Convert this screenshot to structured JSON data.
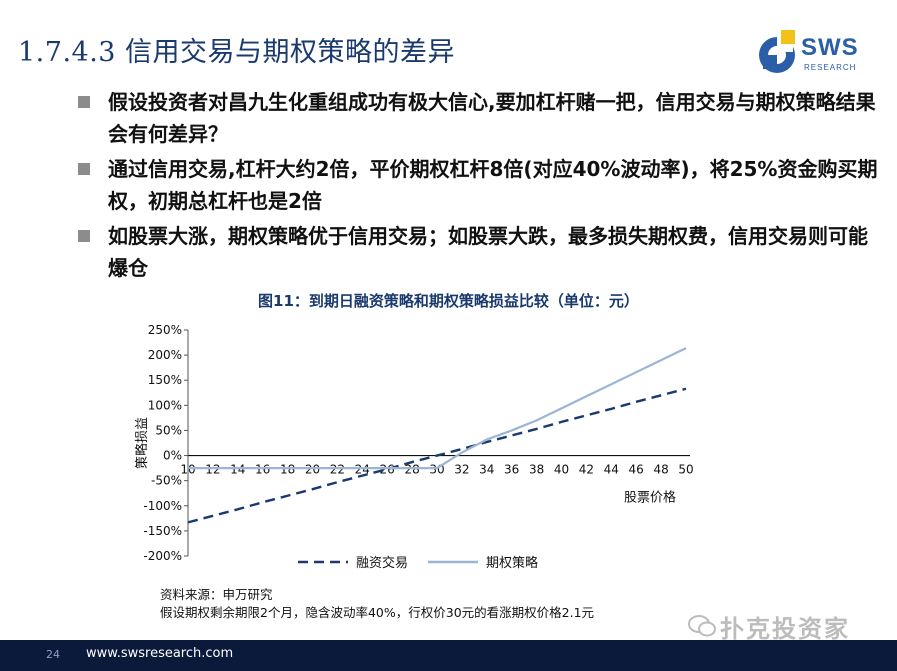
{
  "title": "1.7.4.3 信用交易与期权策略的差异",
  "logo": {
    "text": "SWS",
    "sub": "RESEARCH"
  },
  "bullets": [
    "假设投资者对昌九生化重组成功有极大信心,要加杠杆赌一把，信用交易与期权策略结果会有何差异？",
    "通过信用交易,杠杆大约2倍，平价期权杠杆8倍(对应40%波动率)，将25%资金购买期权，初期总杠杆也是2倍",
    "如股票大涨，期权策略优于信用交易；如股票大跌，最多损失期权费，信用交易则可能爆仓"
  ],
  "figure_title": "图11：到期日融资策略和期权策略损益比较（单位：元）",
  "chart_data": {
    "type": "line",
    "x": [
      10,
      12,
      14,
      16,
      18,
      20,
      22,
      24,
      26,
      28,
      30,
      32,
      34,
      36,
      38,
      40,
      42,
      44,
      46,
      48,
      50
    ],
    "xlabel": "股票价格",
    "ylabel": "策略损益",
    "ylim": [
      -200,
      250
    ],
    "yticks": [
      "250%",
      "200%",
      "150%",
      "100%",
      "50%",
      "0%",
      "-50%",
      "-100%",
      "-150%",
      "-200%"
    ],
    "ytick_values": [
      250,
      200,
      150,
      100,
      50,
      0,
      -50,
      -100,
      -150,
      -200
    ],
    "xticks": [
      "10",
      "12",
      "14",
      "16",
      "18",
      "20",
      "22",
      "24",
      "26",
      "28",
      "30",
      "32",
      "34",
      "36",
      "38",
      "40",
      "42",
      "44",
      "46",
      "48",
      "50"
    ],
    "series": [
      {
        "name": "融资交易",
        "style": "dashed",
        "color": "#1a3a6e",
        "values": [
          -133,
          -120,
          -107,
          -93,
          -80,
          -67,
          -53,
          -40,
          -27,
          -13,
          0,
          13,
          27,
          40,
          53,
          67,
          80,
          93,
          107,
          120,
          133
        ]
      },
      {
        "name": "期权策略",
        "style": "solid",
        "color": "#9cb4d6",
        "values": [
          -25,
          -25,
          -25,
          -25,
          -25,
          -25,
          -25,
          -25,
          -25,
          -25,
          -25,
          6,
          32,
          50,
          70,
          94,
          118,
          142,
          166,
          190,
          214
        ]
      }
    ],
    "legend": "bottom"
  },
  "source": "资料来源：申万研究",
  "note": "假设期权剩余期限2个月，隐含波动率40%，行权价30元的看涨期权价格2.1元",
  "footer": {
    "page": "24",
    "url": "www.swsresearch.com"
  },
  "watermark": "扑克投资家"
}
